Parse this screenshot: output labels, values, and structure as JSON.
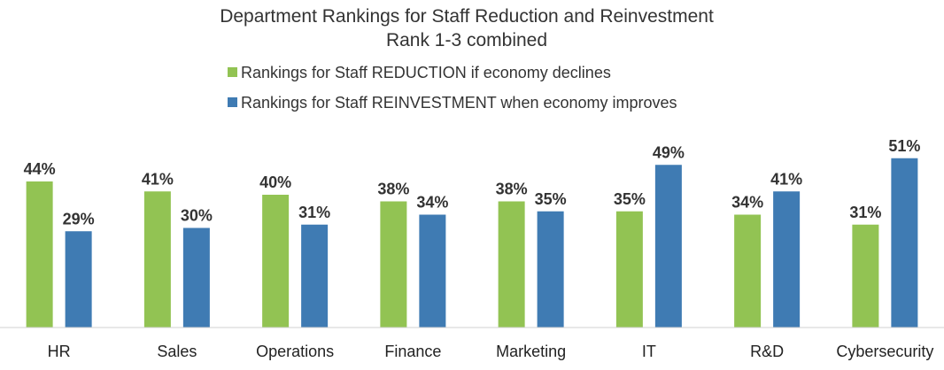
{
  "chart_data": {
    "type": "bar",
    "title": "Department Rankings for Staff Reduction and Reinvestment",
    "subtitle": "Rank 1-3 combined",
    "legend_position": "top",
    "grid": false,
    "ylim": [
      0,
      60
    ],
    "categories": [
      "HR",
      "Sales",
      "Operations",
      "Finance",
      "Marketing",
      "IT",
      "R&D",
      "Cybersecurity"
    ],
    "series": [
      {
        "name": "Rankings for Staff REDUCTION if economy declines",
        "color": "#92c353",
        "values": [
          44,
          41,
          40,
          38,
          38,
          35,
          34,
          31
        ],
        "labels": [
          "44%",
          "41%",
          "40%",
          "38%",
          "38%",
          "35%",
          "34%",
          "31%"
        ]
      },
      {
        "name": "Rankings for Staff REINVESTMENT when economy improves",
        "color": "#3f7bb3",
        "values": [
          29,
          30,
          31,
          34,
          35,
          49,
          41,
          51
        ],
        "labels": [
          "29%",
          "30%",
          "31%",
          "34%",
          "35%",
          "49%",
          "41%",
          "51%"
        ]
      }
    ]
  }
}
